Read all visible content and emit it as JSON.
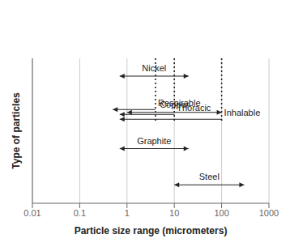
{
  "chart_data": {
    "type": "range",
    "orientation": "horizontal",
    "xlabel": "Particle size range (micrometers)",
    "ylabel": "Type of particles",
    "log": "x",
    "xlim": [
      0.01,
      1000
    ],
    "xticks": [
      0.01,
      0.1,
      1,
      10,
      100,
      1000
    ],
    "grid": true,
    "tick_labels": "x",
    "categories": [
      "Nickel",
      "Copper",
      "Graphite",
      "Steel"
    ],
    "values": [
      [
        0.7,
        20
      ],
      [
        1,
        100
      ],
      [
        0.7,
        20
      ],
      [
        10,
        300
      ]
    ],
    "annotations": [
      {
        "text": "Inhalable",
        "x_tail": 100,
        "x_head": 0.7
      },
      {
        "text": "Thoracic",
        "x_tail": 10,
        "x_head": 0.7
      },
      {
        "text": "Respirable",
        "x_tail": 4,
        "x_head": 0.5
      }
    ]
  }
}
